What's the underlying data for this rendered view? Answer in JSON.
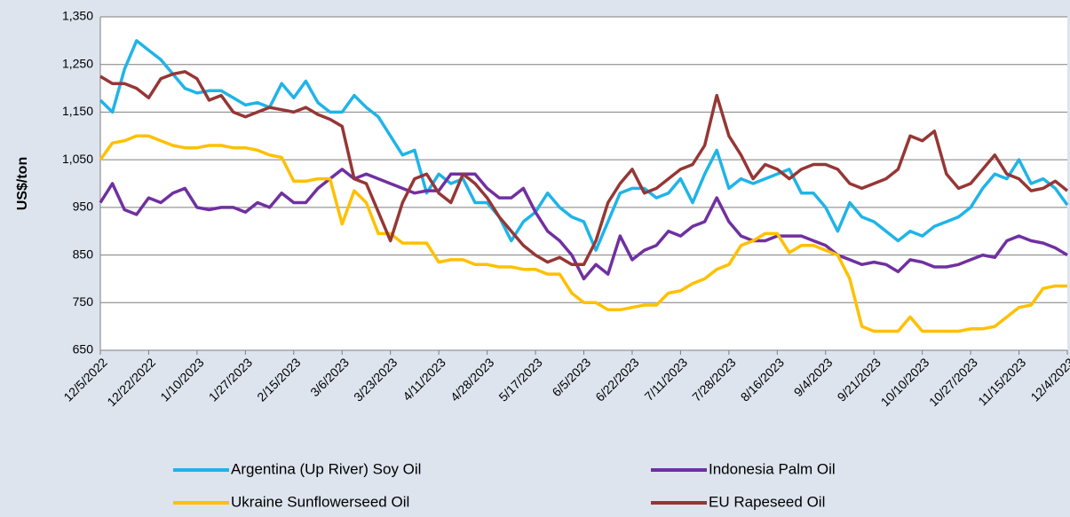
{
  "chart_data": {
    "type": "line",
    "y_label": "US$/ton",
    "categories": [
      "12/5/2022",
      null,
      null,
      null,
      "12/22/2022",
      null,
      null,
      null,
      "1/10/2023",
      null,
      null,
      null,
      "1/27/2023",
      null,
      null,
      null,
      "2/15/2023",
      null,
      null,
      null,
      "3/6/2023",
      null,
      null,
      null,
      "3/23/2023",
      null,
      null,
      null,
      "4/11/2023",
      null,
      null,
      null,
      "4/28/2023",
      null,
      null,
      null,
      "5/17/2023",
      null,
      null,
      null,
      "6/5/2023",
      null,
      null,
      null,
      "6/22/2023",
      null,
      null,
      null,
      "7/11/2023",
      null,
      null,
      null,
      "7/28/2023",
      null,
      null,
      null,
      "8/16/2023",
      null,
      null,
      null,
      "9/4/2023",
      null,
      null,
      null,
      "9/21/2023",
      null,
      null,
      null,
      "10/10/2023",
      null,
      null,
      null,
      "10/27/2023",
      null,
      null,
      null,
      "11/15/2023",
      null,
      null,
      null,
      "12/4/2023"
    ],
    "series": [
      {
        "name": "Argentina (Up River) Soy Oil",
        "color": "#1fb4e8",
        "values": [
          1175,
          1150,
          1240,
          1300,
          1280,
          1260,
          1230,
          1200,
          1190,
          1195,
          1195,
          1180,
          1165,
          1170,
          1160,
          1210,
          1180,
          1215,
          1170,
          1150,
          1150,
          1185,
          1160,
          1140,
          1100,
          1060,
          1070,
          980,
          1020,
          1000,
          1010,
          960,
          960,
          930,
          880,
          920,
          940,
          980,
          950,
          930,
          920,
          860,
          920,
          980,
          990,
          990,
          970,
          980,
          1010,
          960,
          1020,
          1070,
          990,
          1010,
          1000,
          1010,
          1020,
          1030,
          980,
          980,
          950,
          900,
          960,
          930,
          920,
          900,
          880,
          900,
          890,
          910,
          920,
          930,
          950,
          990,
          1020,
          1010,
          1050,
          1000,
          1010,
          990,
          955
        ]
      },
      {
        "name": "Indonesia Palm Oil",
        "color": "#7030a0",
        "values": [
          960,
          1000,
          945,
          935,
          970,
          960,
          980,
          990,
          950,
          945,
          950,
          950,
          940,
          960,
          950,
          980,
          960,
          960,
          990,
          1010,
          1030,
          1010,
          1020,
          1010,
          1000,
          990,
          980,
          985,
          985,
          1020,
          1020,
          1020,
          990,
          970,
          970,
          990,
          940,
          900,
          880,
          850,
          800,
          830,
          810,
          890,
          840,
          860,
          870,
          900,
          890,
          910,
          920,
          970,
          920,
          890,
          880,
          880,
          890,
          890,
          890,
          880,
          870,
          850,
          840,
          830,
          835,
          830,
          815,
          840,
          835,
          825,
          825,
          830,
          840,
          850,
          845,
          880,
          890,
          880,
          875,
          865,
          850
        ]
      },
      {
        "name": "Ukraine Sunflowerseed Oil",
        "color": "#ffc000",
        "values": [
          1050,
          1085,
          1090,
          1100,
          1100,
          1090,
          1080,
          1075,
          1075,
          1080,
          1080,
          1075,
          1075,
          1070,
          1060,
          1055,
          1005,
          1005,
          1010,
          1010,
          915,
          985,
          960,
          895,
          895,
          875,
          875,
          875,
          835,
          840,
          840,
          830,
          830,
          825,
          825,
          820,
          820,
          810,
          810,
          770,
          750,
          750,
          735,
          735,
          740,
          745,
          745,
          770,
          775,
          790,
          800,
          820,
          830,
          870,
          880,
          895,
          895,
          855,
          870,
          870,
          860,
          850,
          800,
          700,
          690,
          690,
          690,
          720,
          690,
          690,
          690,
          690,
          695,
          695,
          700,
          720,
          740,
          745,
          780,
          785,
          785
        ]
      },
      {
        "name": "EU Rapeseed Oil",
        "color": "#953735",
        "values": [
          1225,
          1210,
          1210,
          1200,
          1180,
          1220,
          1230,
          1235,
          1220,
          1175,
          1185,
          1150,
          1140,
          1150,
          1160,
          1155,
          1150,
          1160,
          1145,
          1135,
          1120,
          1010,
          1000,
          940,
          880,
          960,
          1010,
          1020,
          980,
          960,
          1020,
          1000,
          970,
          930,
          900,
          870,
          850,
          835,
          845,
          830,
          830,
          880,
          960,
          1000,
          1030,
          980,
          990,
          1010,
          1030,
          1040,
          1080,
          1185,
          1100,
          1060,
          1010,
          1040,
          1030,
          1010,
          1030,
          1040,
          1040,
          1030,
          1000,
          990,
          1000,
          1010,
          1030,
          1100,
          1090,
          1110,
          1020,
          990,
          1000,
          1030,
          1060,
          1020,
          1010,
          985,
          990,
          1005,
          985
        ]
      }
    ],
    "ylim": [
      650,
      1350
    ],
    "yticks": [
      650,
      750,
      850,
      950,
      {
        "value": 1050,
        "label": "1,050"
      },
      {
        "value": 1150,
        "label": "1,150"
      },
      {
        "value": 1250,
        "label": "1,250"
      },
      {
        "value": 1350,
        "label": "1,350"
      }
    ],
    "grid": true
  }
}
